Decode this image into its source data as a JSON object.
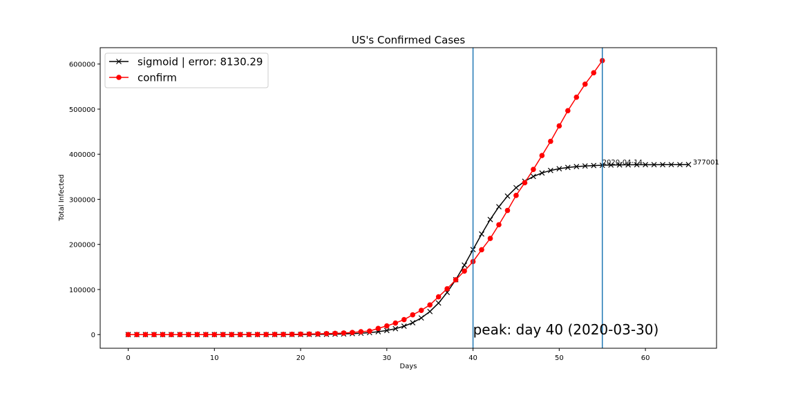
{
  "chart_data": {
    "type": "line",
    "title": "US's Confirmed Cases",
    "x_label": "Days",
    "y_label": "Total Infected",
    "x": [
      0,
      1,
      2,
      3,
      4,
      5,
      6,
      7,
      8,
      9,
      10,
      11,
      12,
      13,
      14,
      15,
      16,
      17,
      18,
      19,
      20,
      21,
      22,
      23,
      24,
      25,
      26,
      27,
      28,
      29,
      30,
      31,
      32,
      33,
      34,
      35,
      36,
      37,
      38,
      39,
      40,
      41,
      42,
      43,
      44,
      45,
      46,
      47,
      48,
      49,
      50,
      51,
      52,
      53,
      54,
      55,
      56,
      57,
      58,
      59,
      60,
      61,
      62,
      63,
      64,
      65
    ],
    "series": [
      {
        "name": "sigmoid | error: 8130.29",
        "color": "#000000",
        "marker": "x",
        "values": [
          0,
          0,
          0,
          0,
          1,
          1,
          1,
          2,
          3,
          4,
          6,
          8,
          12,
          17,
          25,
          36,
          52,
          76,
          110,
          159,
          230,
          333,
          482,
          698,
          1010,
          1460,
          2110,
          3050,
          4390,
          6320,
          9110,
          13060,
          18570,
          26310,
          36920,
          51220,
          69940,
          93540,
          121770,
          154010,
          188500,
          222980,
          255230,
          283550,
          307090,
          325790,
          340070,
          350700,
          358430,
          363970,
          367910,
          370670,
          372600,
          373950,
          374890,
          375540,
          375990,
          376300,
          376520,
          376670,
          376770,
          376840,
          376890,
          376925,
          376950,
          376965
        ]
      },
      {
        "name": "confirm",
        "color": "#ff0000",
        "marker": "o",
        "values": [
          13,
          13,
          15,
          15,
          15,
          51,
          51,
          57,
          58,
          60,
          68,
          74,
          98,
          118,
          149,
          217,
          262,
          402,
          518,
          583,
          959,
          1281,
          1663,
          2179,
          2727,
          3499,
          4632,
          6421,
          7783,
          13747,
          19273,
          25600,
          33276,
          43847,
          53740,
          65778,
          83836,
          101657,
          121465,
          140909,
          161831,
          188172,
          213242,
          243622,
          275367,
          308650,
          336802,
          366317,
          397121,
          428654,
          462780,
          496535,
          526396,
          555313,
          580619,
          607670,
          null,
          null,
          null,
          null,
          null,
          null,
          null,
          null,
          null,
          null
        ]
      }
    ],
    "xlim": [
      -3.25,
      68.25
    ],
    "ylim": [
      -30300,
      636300
    ],
    "xticks": [
      0,
      10,
      20,
      30,
      40,
      50,
      60
    ],
    "yticks": [
      0,
      100000,
      200000,
      300000,
      400000,
      500000,
      600000
    ],
    "vlines": [
      40,
      55
    ],
    "vline_color": "#1f77b4",
    "annotations": [
      {
        "text": "2020-04-14",
        "x": 55,
        "y": 377001,
        "size": "small"
      },
      {
        "text": "377001",
        "x": 65.5,
        "y": 377001,
        "size": "small"
      },
      {
        "text": "peak: day 40 (2020-03-30)",
        "x": 40,
        "y": 0,
        "size": "large"
      }
    ],
    "legend": "upper left"
  }
}
